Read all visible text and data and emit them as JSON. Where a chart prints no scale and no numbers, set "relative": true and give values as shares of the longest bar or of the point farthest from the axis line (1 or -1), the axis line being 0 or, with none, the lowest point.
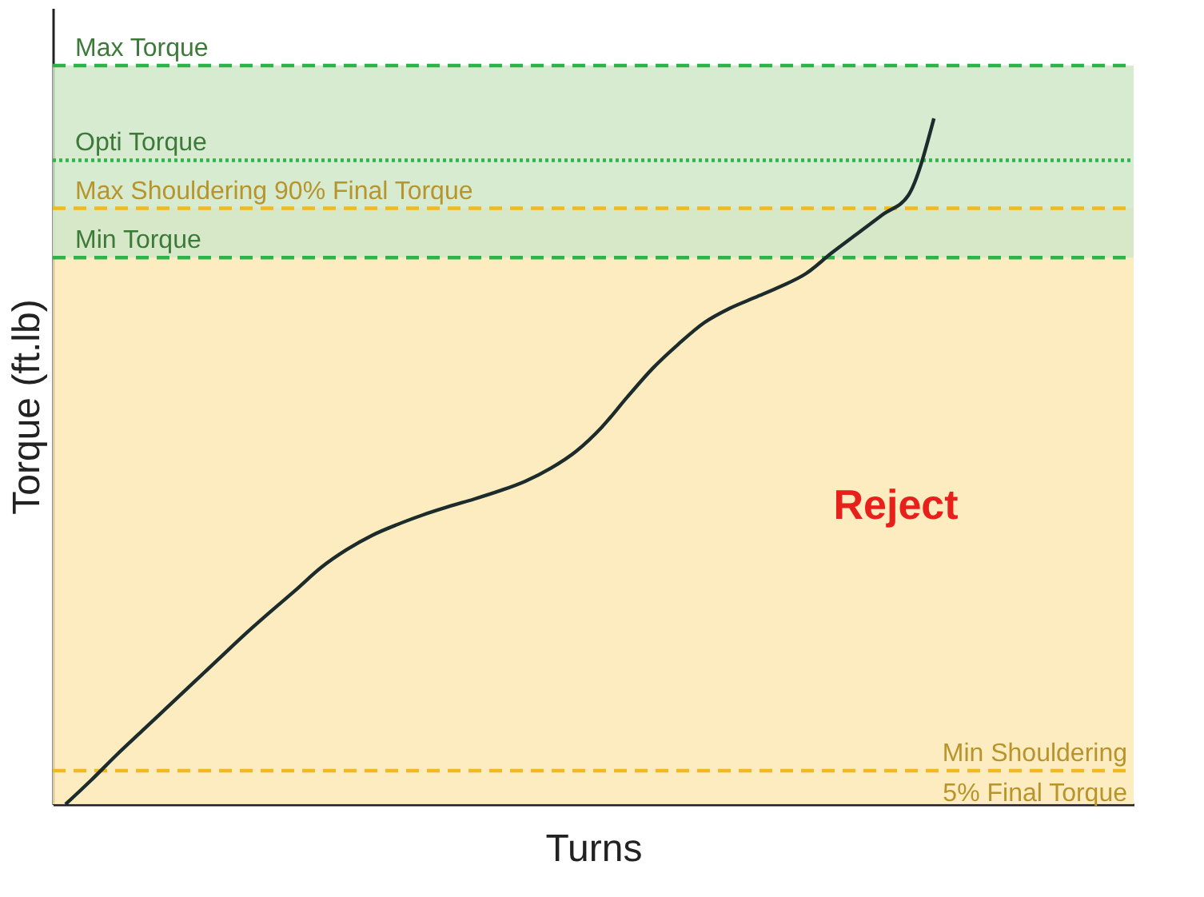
{
  "chart_data": {
    "type": "line",
    "relative": true,
    "xlabel": "Turns",
    "ylabel": "Torque (ft.lb)",
    "categories": [
      null,
      null,
      null,
      null,
      null,
      null,
      null,
      null,
      null,
      null,
      null,
      null,
      null,
      null,
      null,
      null,
      null,
      null,
      null,
      null,
      null,
      null,
      null,
      null,
      null,
      null,
      null,
      null,
      null,
      null,
      null,
      null,
      null,
      null,
      null
    ],
    "series": [
      {
        "color": "#1c2b2b",
        "values": [
          0,
          0.035,
          0.072,
          0.107,
          0.142,
          0.177,
          0.212,
          0.247,
          0.28,
          0.312,
          0.345,
          0.371,
          0.392,
          0.408,
          0.422,
          0.434,
          0.445,
          0.457,
          0.471,
          0.49,
          0.515,
          0.55,
          0.594,
          0.636,
          0.671,
          0.702,
          0.723,
          0.739,
          0.755,
          0.774,
          0.804,
          0.832,
          0.86,
          0.888,
          1.0
        ]
      }
    ],
    "bands": [
      {
        "axis": "y",
        "from": 0,
        "to": 0.869,
        "label": "Reject",
        "color": "#fde9b4"
      },
      {
        "axis": "y",
        "from": 0.797,
        "to": 1.077,
        "color": "#cfe8c8"
      }
    ],
    "ref_lines": [
      {
        "axis": "y",
        "value": 1.077,
        "label": "Max Torque",
        "color": "#2db34a",
        "line_style": "dashed"
      },
      {
        "axis": "y",
        "value": 0.939,
        "label": "Opti Torque",
        "color": "#2db34a",
        "line_style": "dotted"
      },
      {
        "axis": "y",
        "value": 0.869,
        "label": "Max Shouldering 90% Final Torque",
        "color": "#f2b822",
        "line_style": "dashed"
      },
      {
        "axis": "y",
        "value": 0.797,
        "label": "Min Torque",
        "color": "#2db34a",
        "line_style": "dashed"
      },
      {
        "axis": "y",
        "value": 0.049,
        "label": "Min Shouldering\n5% Final Torque",
        "color": "#f2b822",
        "line_style": "dashed"
      }
    ],
    "grid": false
  }
}
